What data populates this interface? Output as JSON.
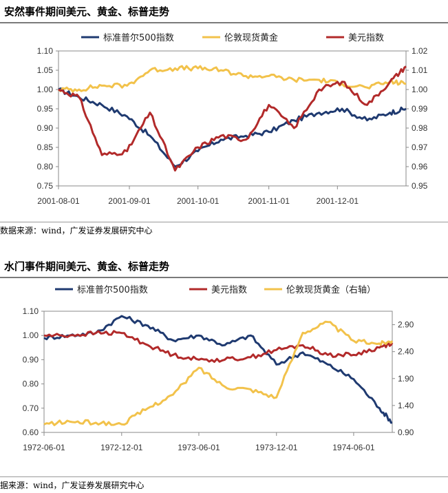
{
  "panels": [
    {
      "title": "安然事件期间美元、黄金、标普走势",
      "source": "数据来源：wind，广发证券发展研究中心",
      "chart_data": {
        "type": "line",
        "title": "安然事件期间美元、黄金、标普走势",
        "x_ticks": [
          "2001-08-01",
          "2001-09-01",
          "2001-10-01",
          "2001-11-01",
          "2001-12-01"
        ],
        "x_range": [
          "2001-08-01",
          "2001-12-31"
        ],
        "y_left": {
          "range": [
            0.75,
            1.1
          ],
          "ticks": [
            "0.75",
            "0.80",
            "0.85",
            "0.90",
            "0.95",
            "1.00",
            "1.05",
            "1.10"
          ]
        },
        "y_right": {
          "range": [
            0.95,
            1.02
          ],
          "ticks": [
            "0.95",
            "0.96",
            "0.97",
            "0.98",
            "0.99",
            "1.00",
            "1.01",
            "1.02"
          ]
        },
        "legend_position": "top",
        "grid": false,
        "series": [
          {
            "name": "标准普尔500指数",
            "color": "#1f3a70",
            "axis": "left",
            "x": [
              "2001-08-01",
              "2001-08-10",
              "2001-08-20",
              "2001-08-31",
              "2001-09-10",
              "2001-09-21",
              "2001-10-01",
              "2001-10-11",
              "2001-10-22",
              "2001-11-01",
              "2001-11-12",
              "2001-11-23",
              "2001-12-03",
              "2001-12-14",
              "2001-12-24",
              "2001-12-31"
            ],
            "y": [
              1.0,
              0.98,
              0.96,
              0.93,
              0.88,
              0.8,
              0.84,
              0.87,
              0.88,
              0.89,
              0.92,
              0.94,
              0.95,
              0.92,
              0.94,
              0.95
            ]
          },
          {
            "name": "伦敦现货黄金",
            "color": "#f2c24b",
            "axis": "right",
            "x": [
              "2001-08-01",
              "2001-08-10",
              "2001-08-20",
              "2001-08-31",
              "2001-09-10",
              "2001-09-21",
              "2001-10-01",
              "2001-10-11",
              "2001-10-22",
              "2001-11-01",
              "2001-11-12",
              "2001-11-23",
              "2001-12-03",
              "2001-12-14",
              "2001-12-24",
              "2001-12-31"
            ],
            "y": [
              1.0,
              1.0,
              1.002,
              1.002,
              1.01,
              1.011,
              1.011,
              1.01,
              1.007,
              1.007,
              1.005,
              1.005,
              1.003,
              1.001,
              1.004,
              1.003
            ]
          },
          {
            "name": "美元指数",
            "color": "#b22a2a",
            "axis": "left",
            "x": [
              "2001-08-01",
              "2001-08-10",
              "2001-08-20",
              "2001-08-31",
              "2001-09-10",
              "2001-09-21",
              "2001-10-01",
              "2001-10-11",
              "2001-10-22",
              "2001-11-01",
              "2001-11-12",
              "2001-11-23",
              "2001-12-03",
              "2001-12-14",
              "2001-12-24",
              "2001-12-31"
            ],
            "y": [
              1.0,
              0.98,
              0.83,
              0.84,
              0.94,
              0.79,
              0.85,
              0.88,
              0.87,
              0.96,
              0.9,
              1.0,
              1.02,
              0.96,
              1.02,
              1.06
            ]
          }
        ]
      }
    },
    {
      "title": "水门事件期间美元、黄金、标普走势",
      "source": "据来源：wind，广发证券发展研究中心",
      "chart_data": {
        "type": "line",
        "title": "水门事件期间美元、黄金、标普走势",
        "x_ticks": [
          "1972-06-01",
          "1972-12-01",
          "1973-06-01",
          "1973-12-01",
          "1974-06-01"
        ],
        "x_range": [
          "1972-06-01",
          "1974-08-31"
        ],
        "y_left": {
          "range": [
            0.6,
            1.1
          ],
          "ticks": [
            "0.60",
            "0.70",
            "0.80",
            "0.90",
            "1.00",
            "1.10"
          ]
        },
        "y_right": {
          "range": [
            0.9,
            3.15
          ],
          "ticks": [
            "0.90",
            "1.40",
            "1.90",
            "2.40",
            "2.90"
          ]
        },
        "legend_position": "top",
        "grid": false,
        "series": [
          {
            "name": "标准普尔500指数",
            "color": "#1f3a70",
            "axis": "left",
            "x": [
              "1972-06-01",
              "1972-08-01",
              "1972-10-01",
              "1972-12-01",
              "1973-02-01",
              "1973-04-01",
              "1973-06-01",
              "1973-08-01",
              "1973-10-01",
              "1973-12-01",
              "1974-02-01",
              "1974-04-01",
              "1974-06-01",
              "1974-08-01",
              "1974-08-31"
            ],
            "y": [
              0.99,
              1.0,
              1.01,
              1.08,
              1.04,
              0.98,
              1.0,
              0.96,
              1.0,
              0.88,
              0.93,
              0.88,
              0.82,
              0.7,
              0.64
            ]
          },
          {
            "name": "美元指数",
            "color": "#b22a2a",
            "axis": "left",
            "x": [
              "1972-06-01",
              "1972-08-01",
              "1972-10-01",
              "1972-12-01",
              "1973-02-01",
              "1973-04-01",
              "1973-06-01",
              "1973-08-01",
              "1973-10-01",
              "1973-12-01",
              "1974-02-01",
              "1974-04-01",
              "1974-06-01",
              "1974-08-01",
              "1974-08-31"
            ],
            "y": [
              1.0,
              1.0,
              1.01,
              1.01,
              0.96,
              0.92,
              0.9,
              0.9,
              0.91,
              0.94,
              0.96,
              0.92,
              0.92,
              0.95,
              0.97
            ]
          },
          {
            "name": "伦敦现货黄金（右轴）",
            "color": "#f2c24b",
            "axis": "right",
            "x": [
              "1972-06-01",
              "1972-08-01",
              "1972-10-01",
              "1972-12-01",
              "1973-02-01",
              "1973-04-01",
              "1973-06-01",
              "1973-08-01",
              "1973-10-01",
              "1973-12-01",
              "1974-02-01",
              "1974-04-01",
              "1974-06-01",
              "1974-08-01",
              "1974-08-31"
            ],
            "y": [
              1.05,
              1.1,
              1.08,
              1.05,
              1.35,
              1.6,
              2.1,
              1.75,
              1.7,
              1.55,
              2.75,
              2.95,
              2.6,
              2.55,
              2.6
            ]
          }
        ]
      }
    }
  ]
}
